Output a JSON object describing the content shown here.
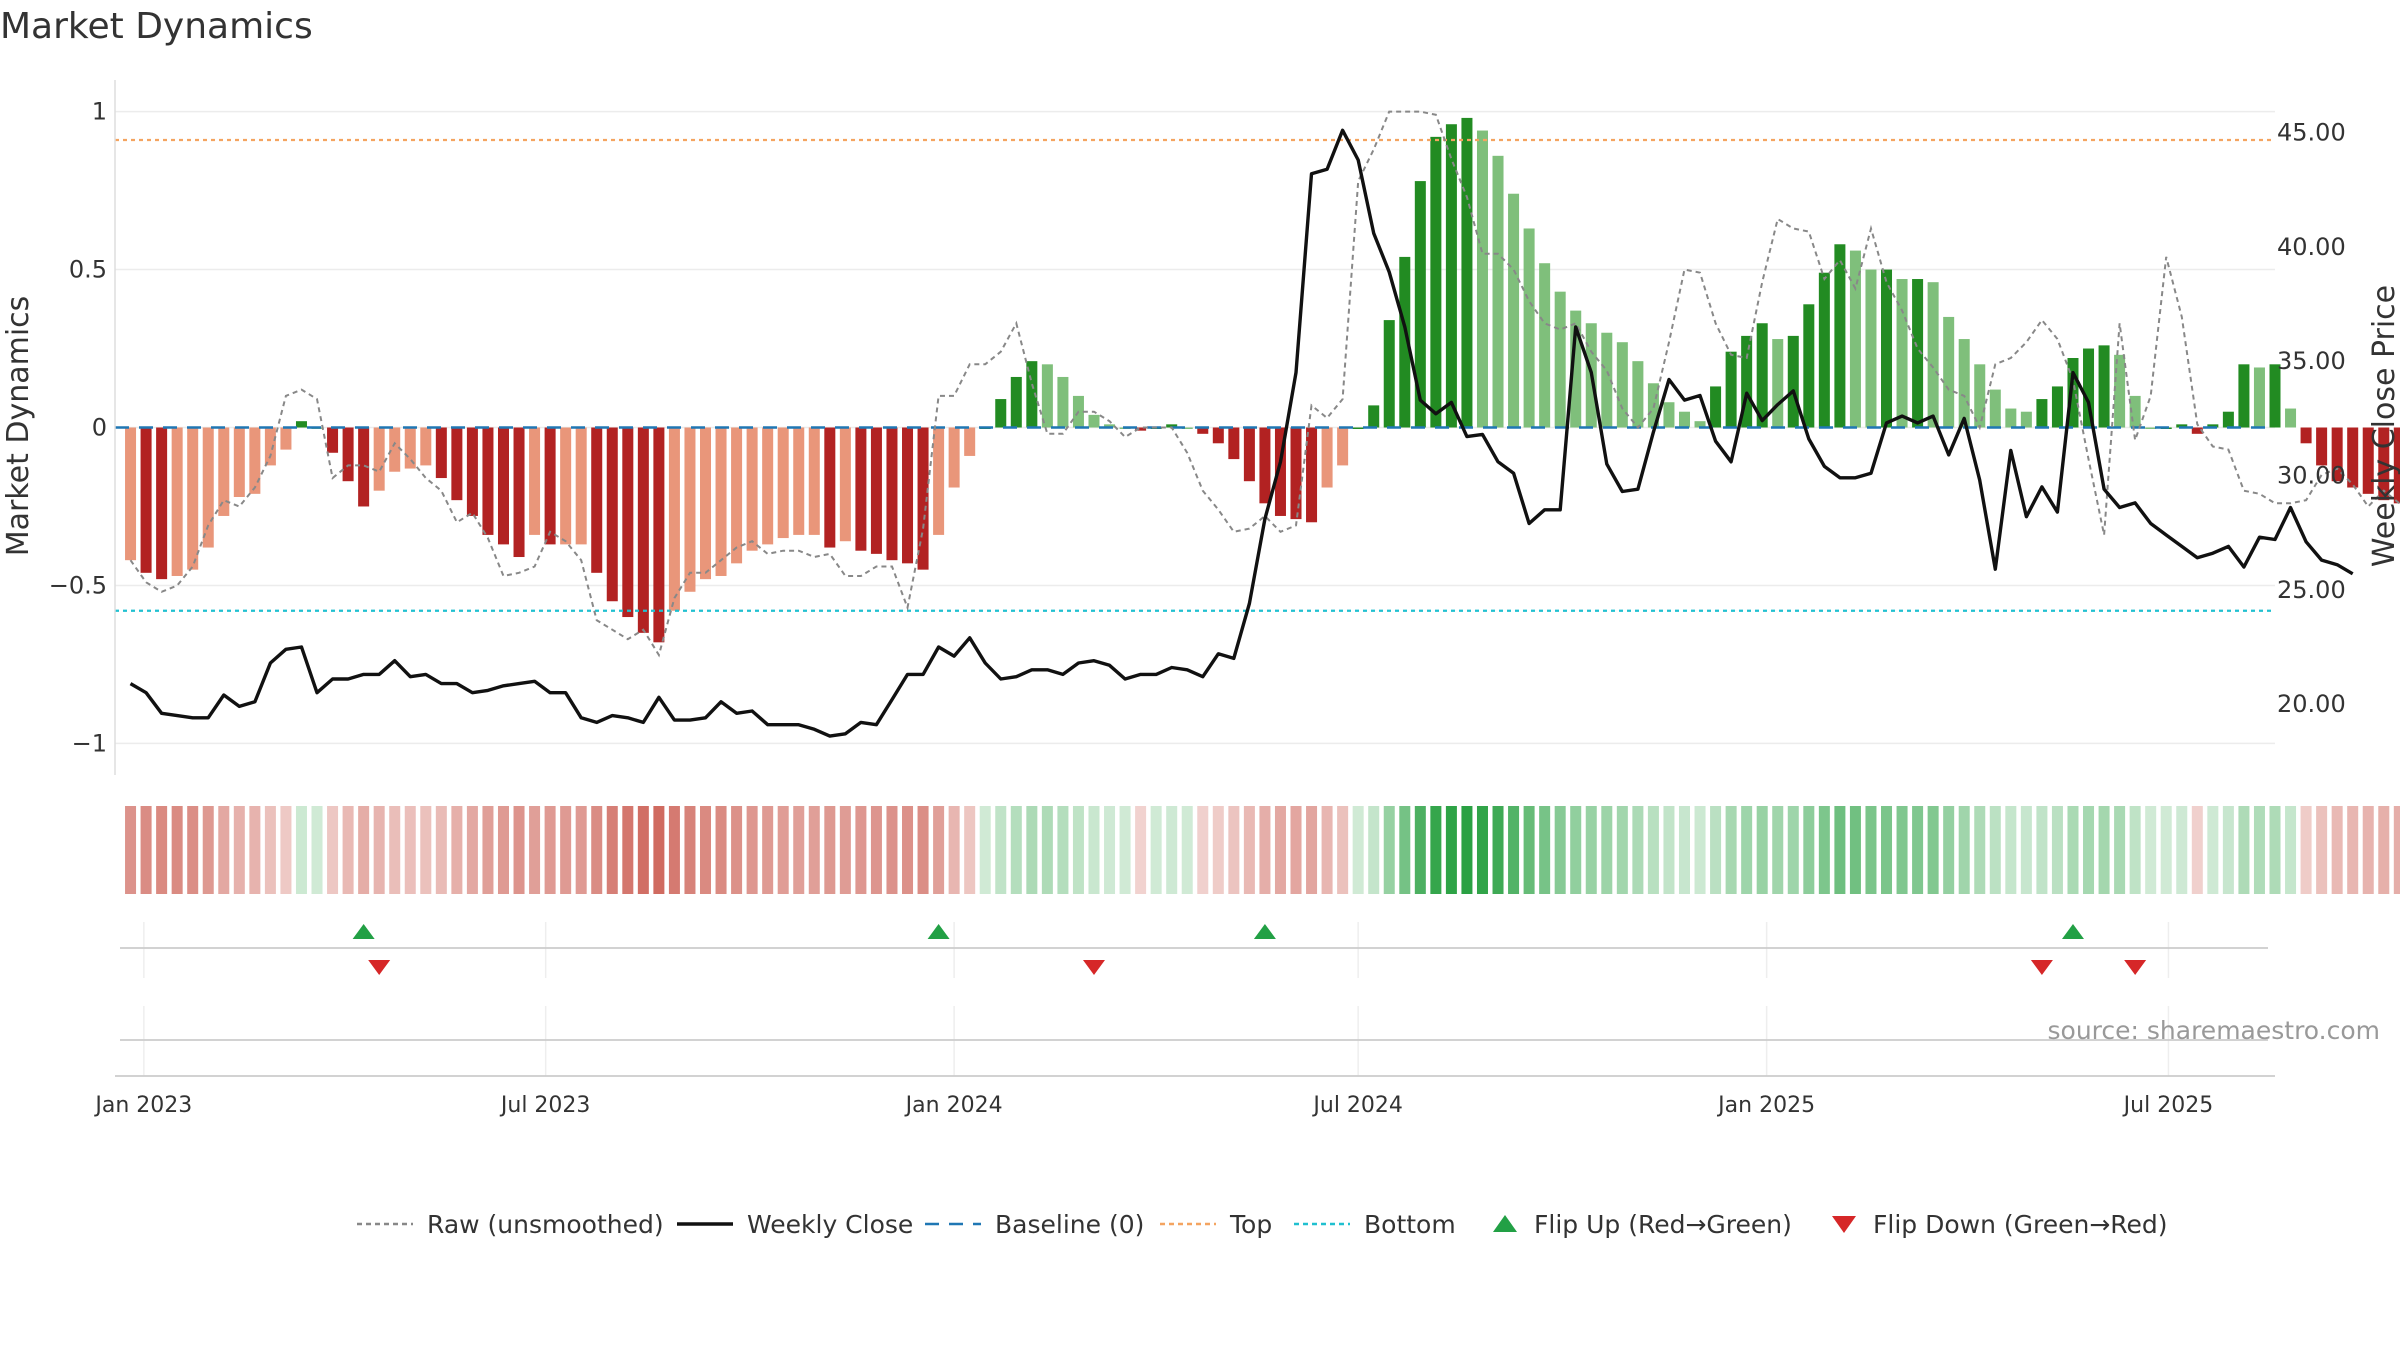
{
  "chart_data": {
    "title": "Market Dynamics",
    "type": "bar",
    "y_left_label": "Market Dynamics",
    "y_right_label": "Weekly Close Price",
    "y_left_range": [
      -1.1,
      1.1
    ],
    "y_left_ticks": [
      1,
      0.5,
      0,
      -0.5,
      -1
    ],
    "y_left_tick_labels": [
      "1",
      "0.5",
      "0",
      "−0.5",
      "−1"
    ],
    "y_right_range": [
      16.9,
      47.3
    ],
    "y_right_ticks": [
      45,
      40,
      35,
      30,
      25,
      20
    ],
    "y_right_tick_labels": [
      "45.00",
      "40.00",
      "35.00",
      "30.00",
      "25.00",
      "20.00"
    ],
    "x_range": [
      "2022-12-19",
      "2025-08-18"
    ],
    "x_ticks": [
      "2023-01-01",
      "2023-07-01",
      "2024-01-01",
      "2024-07-01",
      "2025-01-01",
      "2025-07-01"
    ],
    "x_tick_labels": [
      "Jan 2023",
      "Jul 2023",
      "Jan 2024",
      "Jul 2024",
      "Jan 2025",
      "Jul 2025"
    ],
    "week_start": "2022-12-26",
    "top_line": 0.91,
    "bottom_line": -0.58,
    "baseline": 0,
    "colors": {
      "neg_strong": "#b22222",
      "neg_weak": "#e9967a",
      "pos_strong": "#228b22",
      "pos_weak": "#7fbf7b",
      "raw_line": "#888888",
      "close_line": "#111111",
      "baseline": "#1f77b4",
      "top": "#f4a460",
      "bottom": "#20c0d0",
      "flip_up": "#22a045",
      "flip_down": "#d62728",
      "strip_red": "#c0392b",
      "strip_green": "#27a040"
    },
    "smoothed_values": [
      -0.42,
      -0.46,
      -0.48,
      -0.47,
      -0.45,
      -0.38,
      -0.28,
      -0.22,
      -0.21,
      -0.12,
      -0.07,
      0.02,
      0.0,
      -0.08,
      -0.17,
      -0.25,
      -0.2,
      -0.14,
      -0.13,
      -0.12,
      -0.16,
      -0.23,
      -0.28,
      -0.34,
      -0.37,
      -0.41,
      -0.34,
      -0.37,
      -0.37,
      -0.37,
      -0.46,
      -0.55,
      -0.6,
      -0.65,
      -0.68,
      -0.58,
      -0.52,
      -0.48,
      -0.47,
      -0.43,
      -0.39,
      -0.37,
      -0.35,
      -0.34,
      -0.34,
      -0.38,
      -0.36,
      -0.39,
      -0.4,
      -0.42,
      -0.43,
      -0.45,
      -0.34,
      -0.19,
      -0.09,
      0.0,
      0.09,
      0.16,
      0.21,
      0.2,
      0.16,
      0.1,
      0.04,
      0.01,
      0.0,
      -0.01,
      0.0,
      0.01,
      0.0,
      -0.02,
      -0.05,
      -0.1,
      -0.17,
      -0.24,
      -0.28,
      -0.29,
      -0.3,
      -0.19,
      -0.12,
      0.0,
      0.07,
      0.34,
      0.54,
      0.78,
      0.92,
      0.96,
      0.98,
      0.94,
      0.86,
      0.74,
      0.63,
      0.52,
      0.43,
      0.37,
      0.33,
      0.3,
      0.27,
      0.21,
      0.14,
      0.08,
      0.05,
      0.02,
      0.13,
      0.24,
      0.29,
      0.33,
      0.28,
      0.29,
      0.39,
      0.49,
      0.58,
      0.56,
      0.5,
      0.5,
      0.47,
      0.47,
      0.46,
      0.35,
      0.28,
      0.2,
      0.12,
      0.06,
      0.05,
      0.09,
      0.13,
      0.22,
      0.25,
      0.26,
      0.23,
      0.1,
      0.0,
      0.0,
      0.01,
      -0.02,
      0.01,
      0.05,
      0.2,
      0.19,
      0.2,
      0.06,
      -0.05,
      -0.12,
      -0.17,
      -0.19,
      -0.21,
      -0.23,
      -0.24,
      -0.22,
      -0.22,
      -0.23,
      -0.24,
      -0.25,
      -0.26
    ],
    "raw_values": [
      -0.42,
      -0.49,
      -0.52,
      -0.5,
      -0.44,
      -0.31,
      -0.23,
      -0.25,
      -0.19,
      -0.09,
      0.1,
      0.12,
      0.09,
      -0.16,
      -0.12,
      -0.12,
      -0.14,
      -0.05,
      -0.1,
      -0.16,
      -0.2,
      -0.3,
      -0.27,
      -0.35,
      -0.47,
      -0.46,
      -0.44,
      -0.33,
      -0.36,
      -0.42,
      -0.61,
      -0.64,
      -0.67,
      -0.64,
      -0.72,
      -0.54,
      -0.46,
      -0.46,
      -0.42,
      -0.38,
      -0.36,
      -0.4,
      -0.39,
      -0.39,
      -0.41,
      -0.4,
      -0.47,
      -0.47,
      -0.44,
      -0.44,
      -0.57,
      -0.32,
      0.1,
      0.1,
      0.2,
      0.2,
      0.24,
      0.33,
      0.14,
      -0.02,
      -0.02,
      0.05,
      0.05,
      0.02,
      -0.03,
      0.0,
      0.0,
      0.0,
      -0.08,
      -0.2,
      -0.26,
      -0.33,
      -0.32,
      -0.28,
      -0.33,
      -0.31,
      0.07,
      0.03,
      0.09,
      0.78,
      0.88,
      1.0,
      1.0,
      1.0,
      0.99,
      0.85,
      0.73,
      0.55,
      0.55,
      0.5,
      0.4,
      0.33,
      0.31,
      0.33,
      0.24,
      0.18,
      0.06,
      0.0,
      0.06,
      0.27,
      0.5,
      0.49,
      0.33,
      0.23,
      0.22,
      0.46,
      0.66,
      0.63,
      0.62,
      0.47,
      0.53,
      0.44,
      0.63,
      0.46,
      0.37,
      0.25,
      0.19,
      0.12,
      0.1,
      0.0,
      0.2,
      0.22,
      0.27,
      0.34,
      0.28,
      0.15,
      -0.1,
      -0.34,
      0.33,
      -0.04,
      0.1,
      0.54,
      0.35,
      0.01,
      -0.06,
      -0.07,
      -0.2,
      -0.21,
      -0.24,
      -0.24,
      -0.23,
      -0.15,
      -0.13,
      -0.18,
      -0.25,
      -0.2,
      -0.24,
      -0.27
    ],
    "weekly_close": [
      20.9,
      20.5,
      19.6,
      19.5,
      19.4,
      19.4,
      20.4,
      19.9,
      20.1,
      21.8,
      22.4,
      22.5,
      20.5,
      21.1,
      21.1,
      21.3,
      21.3,
      21.9,
      21.2,
      21.3,
      20.9,
      20.9,
      20.5,
      20.6,
      20.8,
      20.9,
      21.0,
      20.5,
      20.5,
      19.4,
      19.2,
      19.5,
      19.4,
      19.2,
      20.3,
      19.3,
      19.3,
      19.4,
      20.1,
      19.6,
      19.7,
      19.1,
      19.1,
      19.1,
      18.9,
      18.6,
      18.7,
      19.2,
      19.1,
      20.2,
      21.3,
      21.3,
      22.5,
      22.1,
      22.9,
      21.8,
      21.1,
      21.2,
      21.5,
      21.5,
      21.3,
      21.8,
      21.9,
      21.7,
      21.1,
      21.3,
      21.3,
      21.6,
      21.5,
      21.2,
      22.2,
      22.0,
      24.4,
      28.1,
      30.6,
      34.5,
      43.2,
      43.4,
      45.1,
      43.8,
      40.6,
      38.9,
      36.5,
      33.3,
      32.7,
      33.2,
      31.7,
      31.8,
      30.6,
      30.1,
      27.9,
      28.5,
      28.5,
      36.5,
      34.5,
      30.5,
      29.3,
      29.4,
      31.9,
      34.2,
      33.3,
      33.5,
      31.5,
      30.6,
      33.6,
      32.4,
      33.1,
      33.7,
      31.6,
      30.4,
      29.9,
      29.9,
      30.1,
      32.3,
      32.6,
      32.3,
      32.6,
      30.9,
      32.5,
      29.8,
      25.9,
      31.1,
      28.2,
      29.5,
      28.4,
      34.5,
      33.2,
      29.4,
      28.6,
      28.8,
      27.9,
      27.4,
      26.9,
      26.4,
      26.6,
      26.9,
      26.0,
      27.3,
      27.2,
      28.6,
      27.1,
      26.3,
      26.1,
      25.7
    ],
    "strip_levels": [
      0.42,
      0.46,
      0.48,
      0.47,
      0.45,
      0.38,
      0.28,
      0.22,
      0.21,
      0.12,
      0.07,
      0.02,
      0.0,
      0.08,
      0.17,
      0.25,
      0.2,
      0.14,
      0.13,
      0.12,
      0.16,
      0.23,
      0.28,
      0.34,
      0.37,
      0.41,
      0.34,
      0.37,
      0.37,
      0.37,
      0.46,
      0.55,
      0.6,
      0.65,
      0.68,
      0.58,
      0.52,
      0.48,
      0.47,
      0.43,
      0.39,
      0.37,
      0.35,
      0.34,
      0.34,
      0.38,
      0.36,
      0.39,
      0.4,
      0.42,
      0.43,
      0.45,
      0.34,
      0.19,
      0.09,
      0.0,
      0.09,
      0.16,
      0.21,
      0.2,
      0.16,
      0.1,
      0.04,
      0.01,
      0.0,
      0.01,
      0.0,
      0.01,
      0.0,
      0.02,
      0.05,
      0.1,
      0.17,
      0.24,
      0.28,
      0.29,
      0.3,
      0.19,
      0.12,
      0.0,
      0.07,
      0.34,
      0.54,
      0.78,
      0.92,
      0.96,
      0.98,
      0.94,
      0.86,
      0.74,
      0.63,
      0.52,
      0.43,
      0.37,
      0.33,
      0.3,
      0.27,
      0.21,
      0.14,
      0.08,
      0.05,
      0.02,
      0.13,
      0.24,
      0.29,
      0.33,
      0.28,
      0.29,
      0.39,
      0.49,
      0.58,
      0.56,
      0.5,
      0.5,
      0.47,
      0.47,
      0.46,
      0.35,
      0.28,
      0.2,
      0.12,
      0.06,
      0.05,
      0.09,
      0.13,
      0.22,
      0.25,
      0.26,
      0.23,
      0.1,
      0.0,
      0.0,
      0.01,
      0.02,
      0.01,
      0.05,
      0.2,
      0.19,
      0.2,
      0.06,
      0.05,
      0.12,
      0.17,
      0.19,
      0.21,
      0.23,
      0.24,
      0.22,
      0.22,
      0.23,
      0.24,
      0.25,
      0.26
    ],
    "flip_up_dates": [
      "2023-04-10",
      "2023-12-25",
      "2024-05-20",
      "2025-05-19"
    ],
    "flip_down_dates": [
      "2023-04-17",
      "2024-03-04",
      "2025-05-05",
      "2025-06-16"
    ],
    "legend": [
      {
        "label": "Raw (unsmoothed)",
        "style": "dotted-line"
      },
      {
        "label": "Weekly Close",
        "style": "solid-line"
      },
      {
        "label": "Baseline (0)",
        "style": "dashed-line"
      },
      {
        "label": "Top",
        "style": "dotted-line"
      },
      {
        "label": "Bottom",
        "style": "dotted-line"
      },
      {
        "label": "Flip Up (Red→Green)",
        "style": "triangle-up"
      },
      {
        "label": "Flip Down (Green→Red)",
        "style": "triangle-down"
      }
    ],
    "legend_position": "bottom",
    "grid": true,
    "source": "source: sharemaestro.com"
  }
}
